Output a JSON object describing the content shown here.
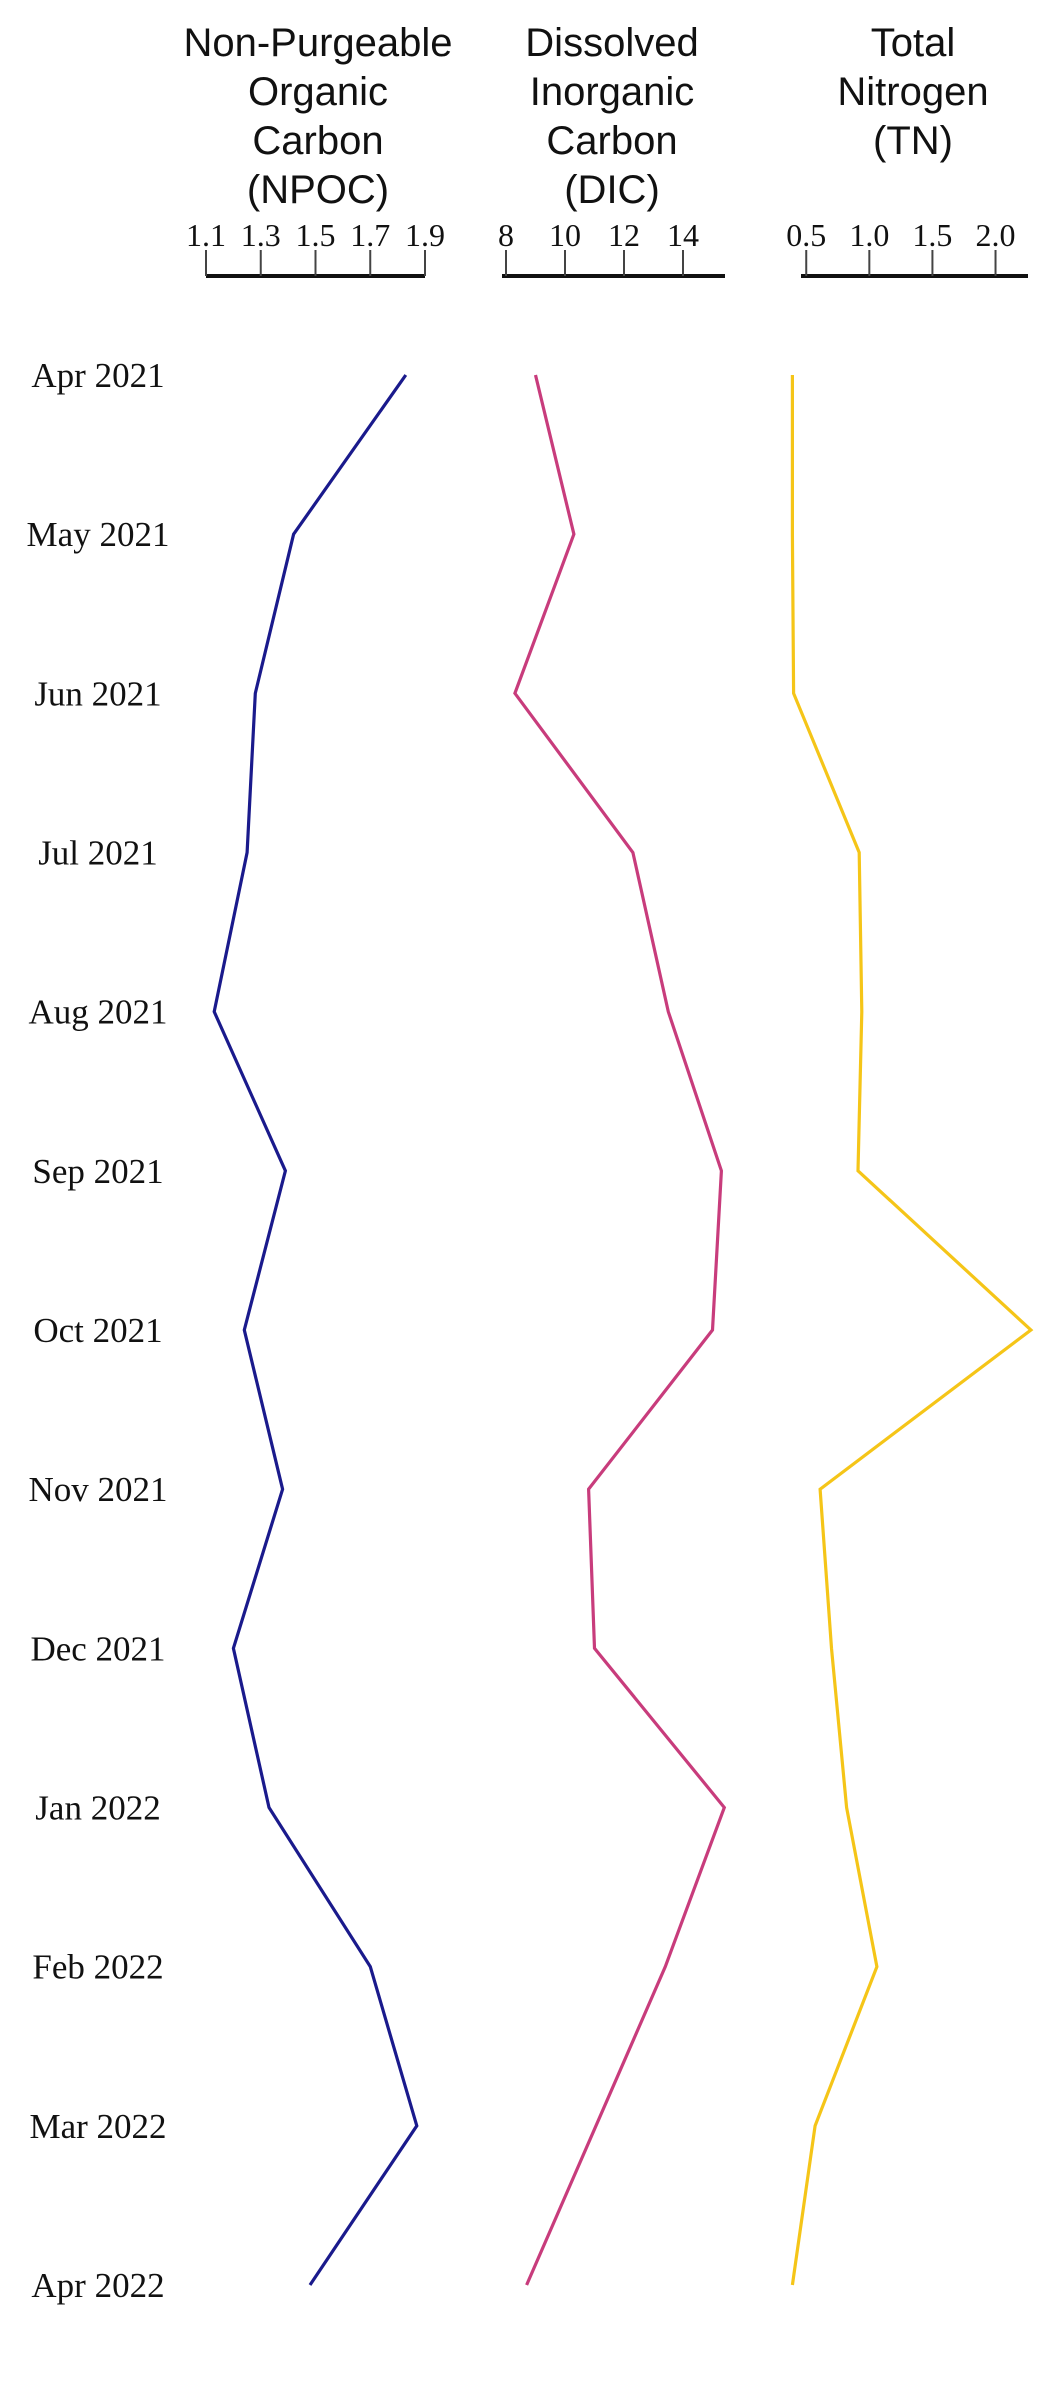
{
  "chart_data": {
    "type": "line",
    "orientation": "vertical-profile",
    "y_categories": [
      "Apr 2021",
      "May 2021",
      "Jun 2021",
      "Jul 2021",
      "Aug 2021",
      "Sep 2021",
      "Oct 2021",
      "Nov 2021",
      "Dec 2021",
      "Jan 2022",
      "Feb 2022",
      "Mar 2022",
      "Apr 2022"
    ],
    "panels": [
      {
        "title_lines": [
          "Non-Purgeable",
          "Organic",
          "Carbon",
          "(NPOC)"
        ],
        "ticks": [
          1.1,
          1.3,
          1.5,
          1.7,
          1.9
        ],
        "tick_labels": [
          "1.1",
          "1.3",
          "1.5",
          "1.7",
          "1.9"
        ],
        "xlim": [
          1.1,
          1.9
        ],
        "color": "#1a1a8c",
        "values": [
          1.83,
          1.42,
          1.28,
          1.25,
          1.13,
          1.39,
          1.24,
          1.38,
          1.2,
          1.33,
          1.7,
          1.87,
          1.48
        ]
      },
      {
        "title_lines": [
          "Dissolved",
          "Inorganic",
          "Carbon",
          "(DIC)"
        ],
        "ticks": [
          8,
          10,
          12,
          14
        ],
        "tick_labels": [
          "8",
          "10",
          "12",
          "14"
        ],
        "xlim": [
          8,
          16
        ],
        "color": "#c83c7c",
        "values": [
          9.0,
          10.3,
          8.3,
          12.3,
          13.5,
          15.3,
          15.0,
          10.8,
          11.0,
          15.4,
          13.4,
          null,
          8.7
        ]
      },
      {
        "title_lines": [
          "Total",
          "Nitrogen",
          "(TN)"
        ],
        "ticks": [
          0.5,
          1.0,
          1.5,
          2.0
        ],
        "tick_labels": [
          "0.5",
          "1.0",
          "1.5",
          "2.0"
        ],
        "xlim": [
          0.3,
          2.4
        ],
        "color": "#f5c518",
        "values": [
          0.39,
          0.39,
          0.4,
          0.92,
          0.94,
          0.91,
          2.28,
          0.61,
          0.7,
          0.82,
          1.06,
          0.57,
          0.39
        ]
      }
    ],
    "grid": false,
    "legend": "none"
  }
}
